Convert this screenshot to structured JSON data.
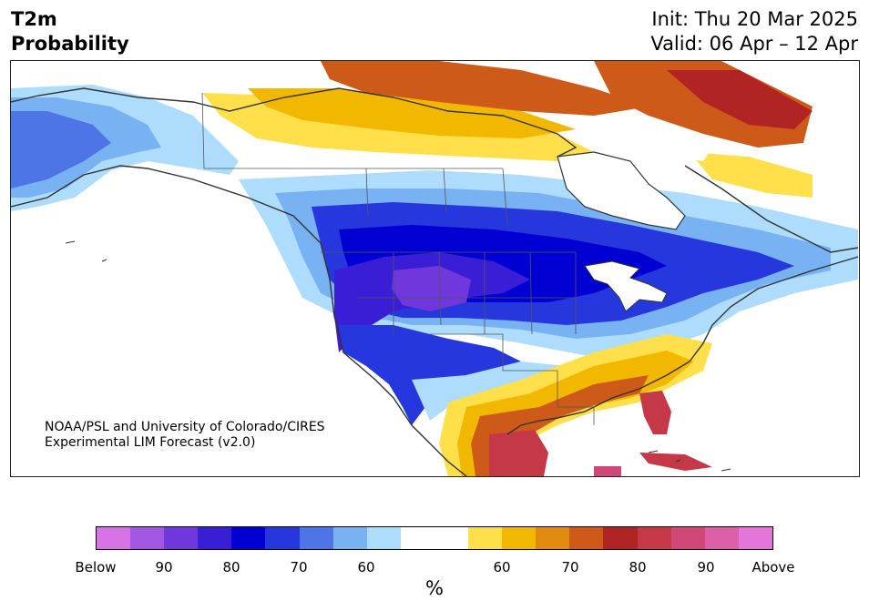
{
  "header": {
    "title_line1": "T2m",
    "title_line2": "Probability",
    "init_text": "Init: Thu 20 Mar 2025",
    "valid_text": "Valid: 06 Apr – 12 Apr"
  },
  "map": {
    "region": "North America",
    "variable": "2-m temperature probability",
    "credit_line1": "NOAA/PSL and University of Colorado/CIRES",
    "credit_line2": "Experimental LIM Forecast (v2.0)"
  },
  "colorbar": {
    "unit_label": "%",
    "tick_labels": [
      "Below",
      "90",
      "80",
      "70",
      "60",
      "60",
      "70",
      "80",
      "90",
      "Above"
    ],
    "colors": [
      "#d873e6",
      "#a257e0",
      "#7038dc",
      "#3a1ed6",
      "#0000d2",
      "#2637dd",
      "#4e75e6",
      "#78b2f2",
      "#aedcfc",
      "#ffffff",
      "#ffffff",
      "#ffe04a",
      "#f2b800",
      "#e08a10",
      "#cd5a18",
      "#b02424",
      "#c43848",
      "#d04878",
      "#dc60a8",
      "#e476da"
    ],
    "below_colors": [
      "#d873e6",
      "#a257e0",
      "#7038dc",
      "#3a1ed6",
      "#0000d2",
      "#2637dd",
      "#4e75e6",
      "#78b2f2",
      "#aedcfc"
    ],
    "above_colors": [
      "#ffe04a",
      "#f2b800",
      "#e08a10",
      "#cd5a18",
      "#b02424",
      "#c43848",
      "#d04878",
      "#dc60a8",
      "#e476da"
    ]
  }
}
